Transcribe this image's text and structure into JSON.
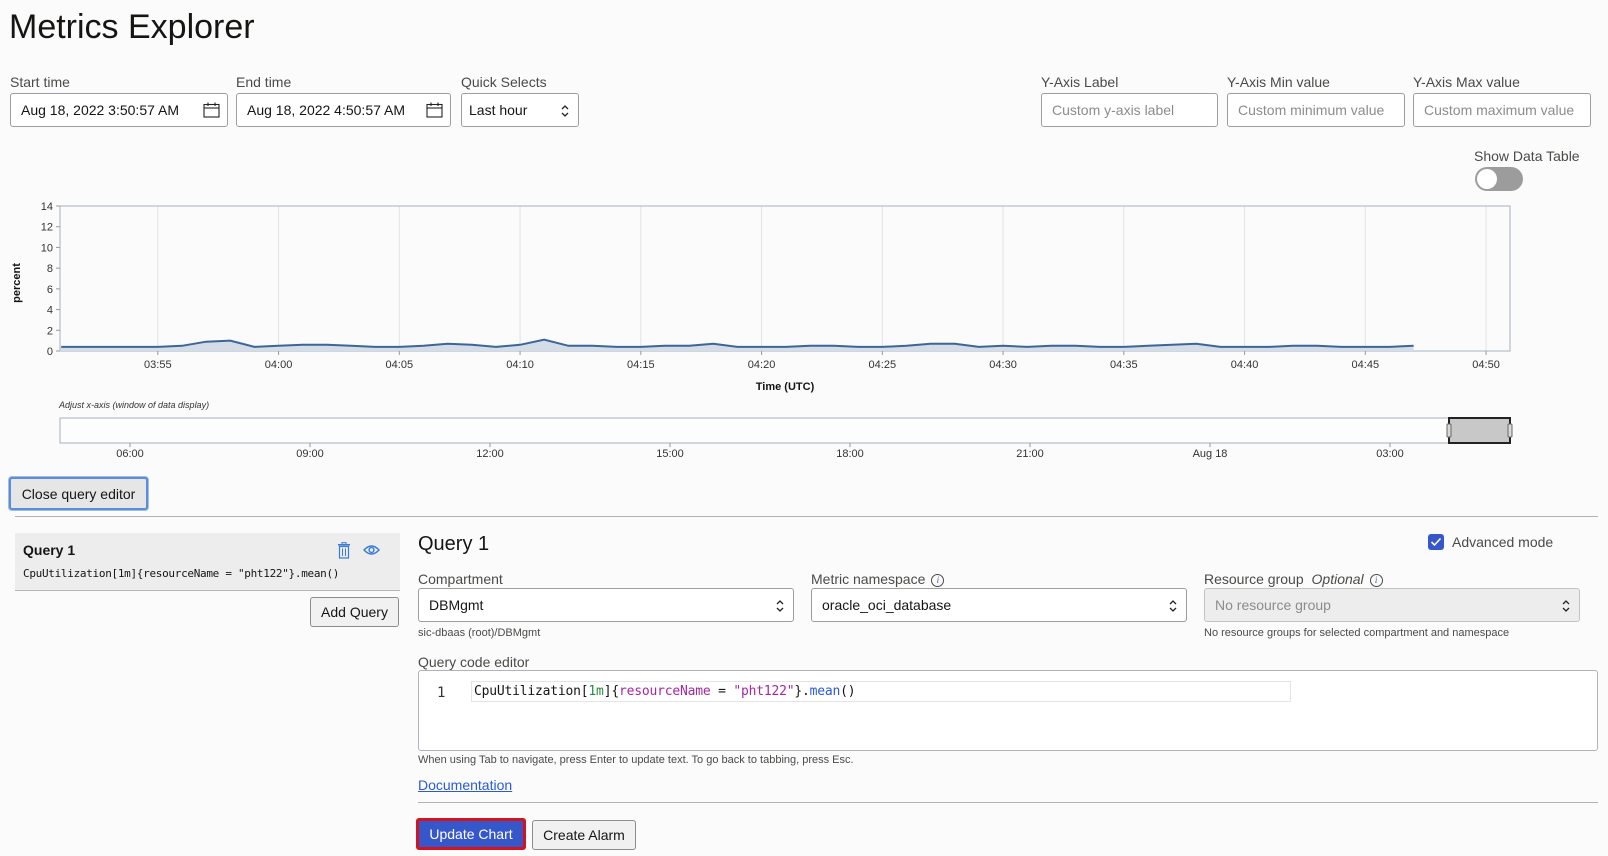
{
  "page": {
    "title": "Metrics Explorer"
  },
  "time_controls": {
    "start_time": {
      "label": "Start time",
      "value": "Aug 18, 2022 3:50:57 AM"
    },
    "end_time": {
      "label": "End time",
      "value": "Aug 18, 2022 4:50:57 AM"
    },
    "quick_selects": {
      "label": "Quick Selects",
      "value": "Last hour"
    }
  },
  "y_axis_controls": {
    "label_field": {
      "label": "Y-Axis Label",
      "placeholder": "Custom y-axis label"
    },
    "min_field": {
      "label": "Y-Axis Min value",
      "placeholder": "Custom minimum value"
    },
    "max_field": {
      "label": "Y-Axis Max value",
      "placeholder": "Custom maximum value"
    }
  },
  "show_data_table": {
    "label": "Show Data Table",
    "enabled": false
  },
  "chart_data": {
    "type": "area",
    "title": "",
    "xlabel": "Time (UTC)",
    "ylabel": "percent",
    "ylim": [
      0,
      14
    ],
    "yticks": [
      "0",
      "2",
      "4",
      "6",
      "8",
      "10",
      "12",
      "14"
    ],
    "xticks": [
      "03:55",
      "04:00",
      "04:05",
      "04:10",
      "04:15",
      "04:20",
      "04:25",
      "04:30",
      "04:35",
      "04:40",
      "04:45",
      "04:50"
    ],
    "grid": true,
    "x": [
      "03:51",
      "03:52",
      "03:53",
      "03:54",
      "03:55",
      "03:56",
      "03:57",
      "03:58",
      "03:59",
      "04:00",
      "04:01",
      "04:02",
      "04:03",
      "04:04",
      "04:05",
      "04:06",
      "04:07",
      "04:08",
      "04:09",
      "04:10",
      "04:11",
      "04:12",
      "04:13",
      "04:14",
      "04:15",
      "04:16",
      "04:17",
      "04:18",
      "04:19",
      "04:20",
      "04:21",
      "04:22",
      "04:23",
      "04:24",
      "04:25",
      "04:26",
      "04:27",
      "04:28",
      "04:29",
      "04:30",
      "04:31",
      "04:32",
      "04:33",
      "04:34",
      "04:35",
      "04:36",
      "04:37",
      "04:38",
      "04:39",
      "04:40",
      "04:41",
      "04:42",
      "04:43",
      "04:44",
      "04:45",
      "04:46",
      "04:47"
    ],
    "series": [
      {
        "name": "CpuUtilization",
        "color": "#3d6596",
        "fill": "#d4dce8",
        "values": [
          0.4,
          0.4,
          0.4,
          0.4,
          0.4,
          0.5,
          0.9,
          1.0,
          0.4,
          0.5,
          0.6,
          0.6,
          0.5,
          0.4,
          0.4,
          0.5,
          0.7,
          0.6,
          0.4,
          0.6,
          1.1,
          0.5,
          0.5,
          0.4,
          0.4,
          0.5,
          0.5,
          0.7,
          0.4,
          0.4,
          0.4,
          0.5,
          0.5,
          0.4,
          0.4,
          0.5,
          0.7,
          0.7,
          0.4,
          0.5,
          0.4,
          0.5,
          0.5,
          0.4,
          0.4,
          0.5,
          0.6,
          0.7,
          0.4,
          0.4,
          0.4,
          0.5,
          0.5,
          0.4,
          0.4,
          0.4,
          0.5
        ]
      }
    ]
  },
  "range_selector": {
    "caption": "Adjust x-axis (window of data display)",
    "ticks": [
      "06:00",
      "09:00",
      "12:00",
      "15:00",
      "18:00",
      "21:00",
      "Aug 18",
      "03:00"
    ]
  },
  "close_editor_button": "Close query editor",
  "query_list": {
    "items": [
      {
        "title": "Query 1",
        "code": "CpuUtilization[1m]{resourceName = \"pht122\"}.mean()"
      }
    ],
    "add_button": "Add Query"
  },
  "query_editor": {
    "title": "Query 1",
    "advanced_mode": {
      "label": "Advanced mode",
      "checked": true
    },
    "compartment": {
      "label": "Compartment",
      "value": "DBMgmt",
      "hint": "sic-dbaas (root)/DBMgmt"
    },
    "metric_namespace": {
      "label": "Metric namespace",
      "value": "oracle_oci_database"
    },
    "resource_group": {
      "label": "Resource group",
      "optional": "Optional",
      "value": "No resource group",
      "hint": "No resource groups for selected compartment and namespace"
    },
    "code_editor": {
      "label": "Query code editor",
      "line_number": "1",
      "tokens": {
        "metric": "CpuUtilization",
        "open_bracket": "[",
        "interval": "1m",
        "close_bracket_brace": "]{",
        "dimension": "resourceName",
        "equals": " = ",
        "dimension_value": "\"pht122\"",
        "close_brace": "}.",
        "statistic": "mean",
        "parens": "()"
      },
      "help": "When using Tab to navigate, press Enter to update text. To go back to tabbing, press Esc."
    },
    "documentation_link": "Documentation",
    "update_button": "Update Chart",
    "create_alarm_button": "Create Alarm"
  }
}
